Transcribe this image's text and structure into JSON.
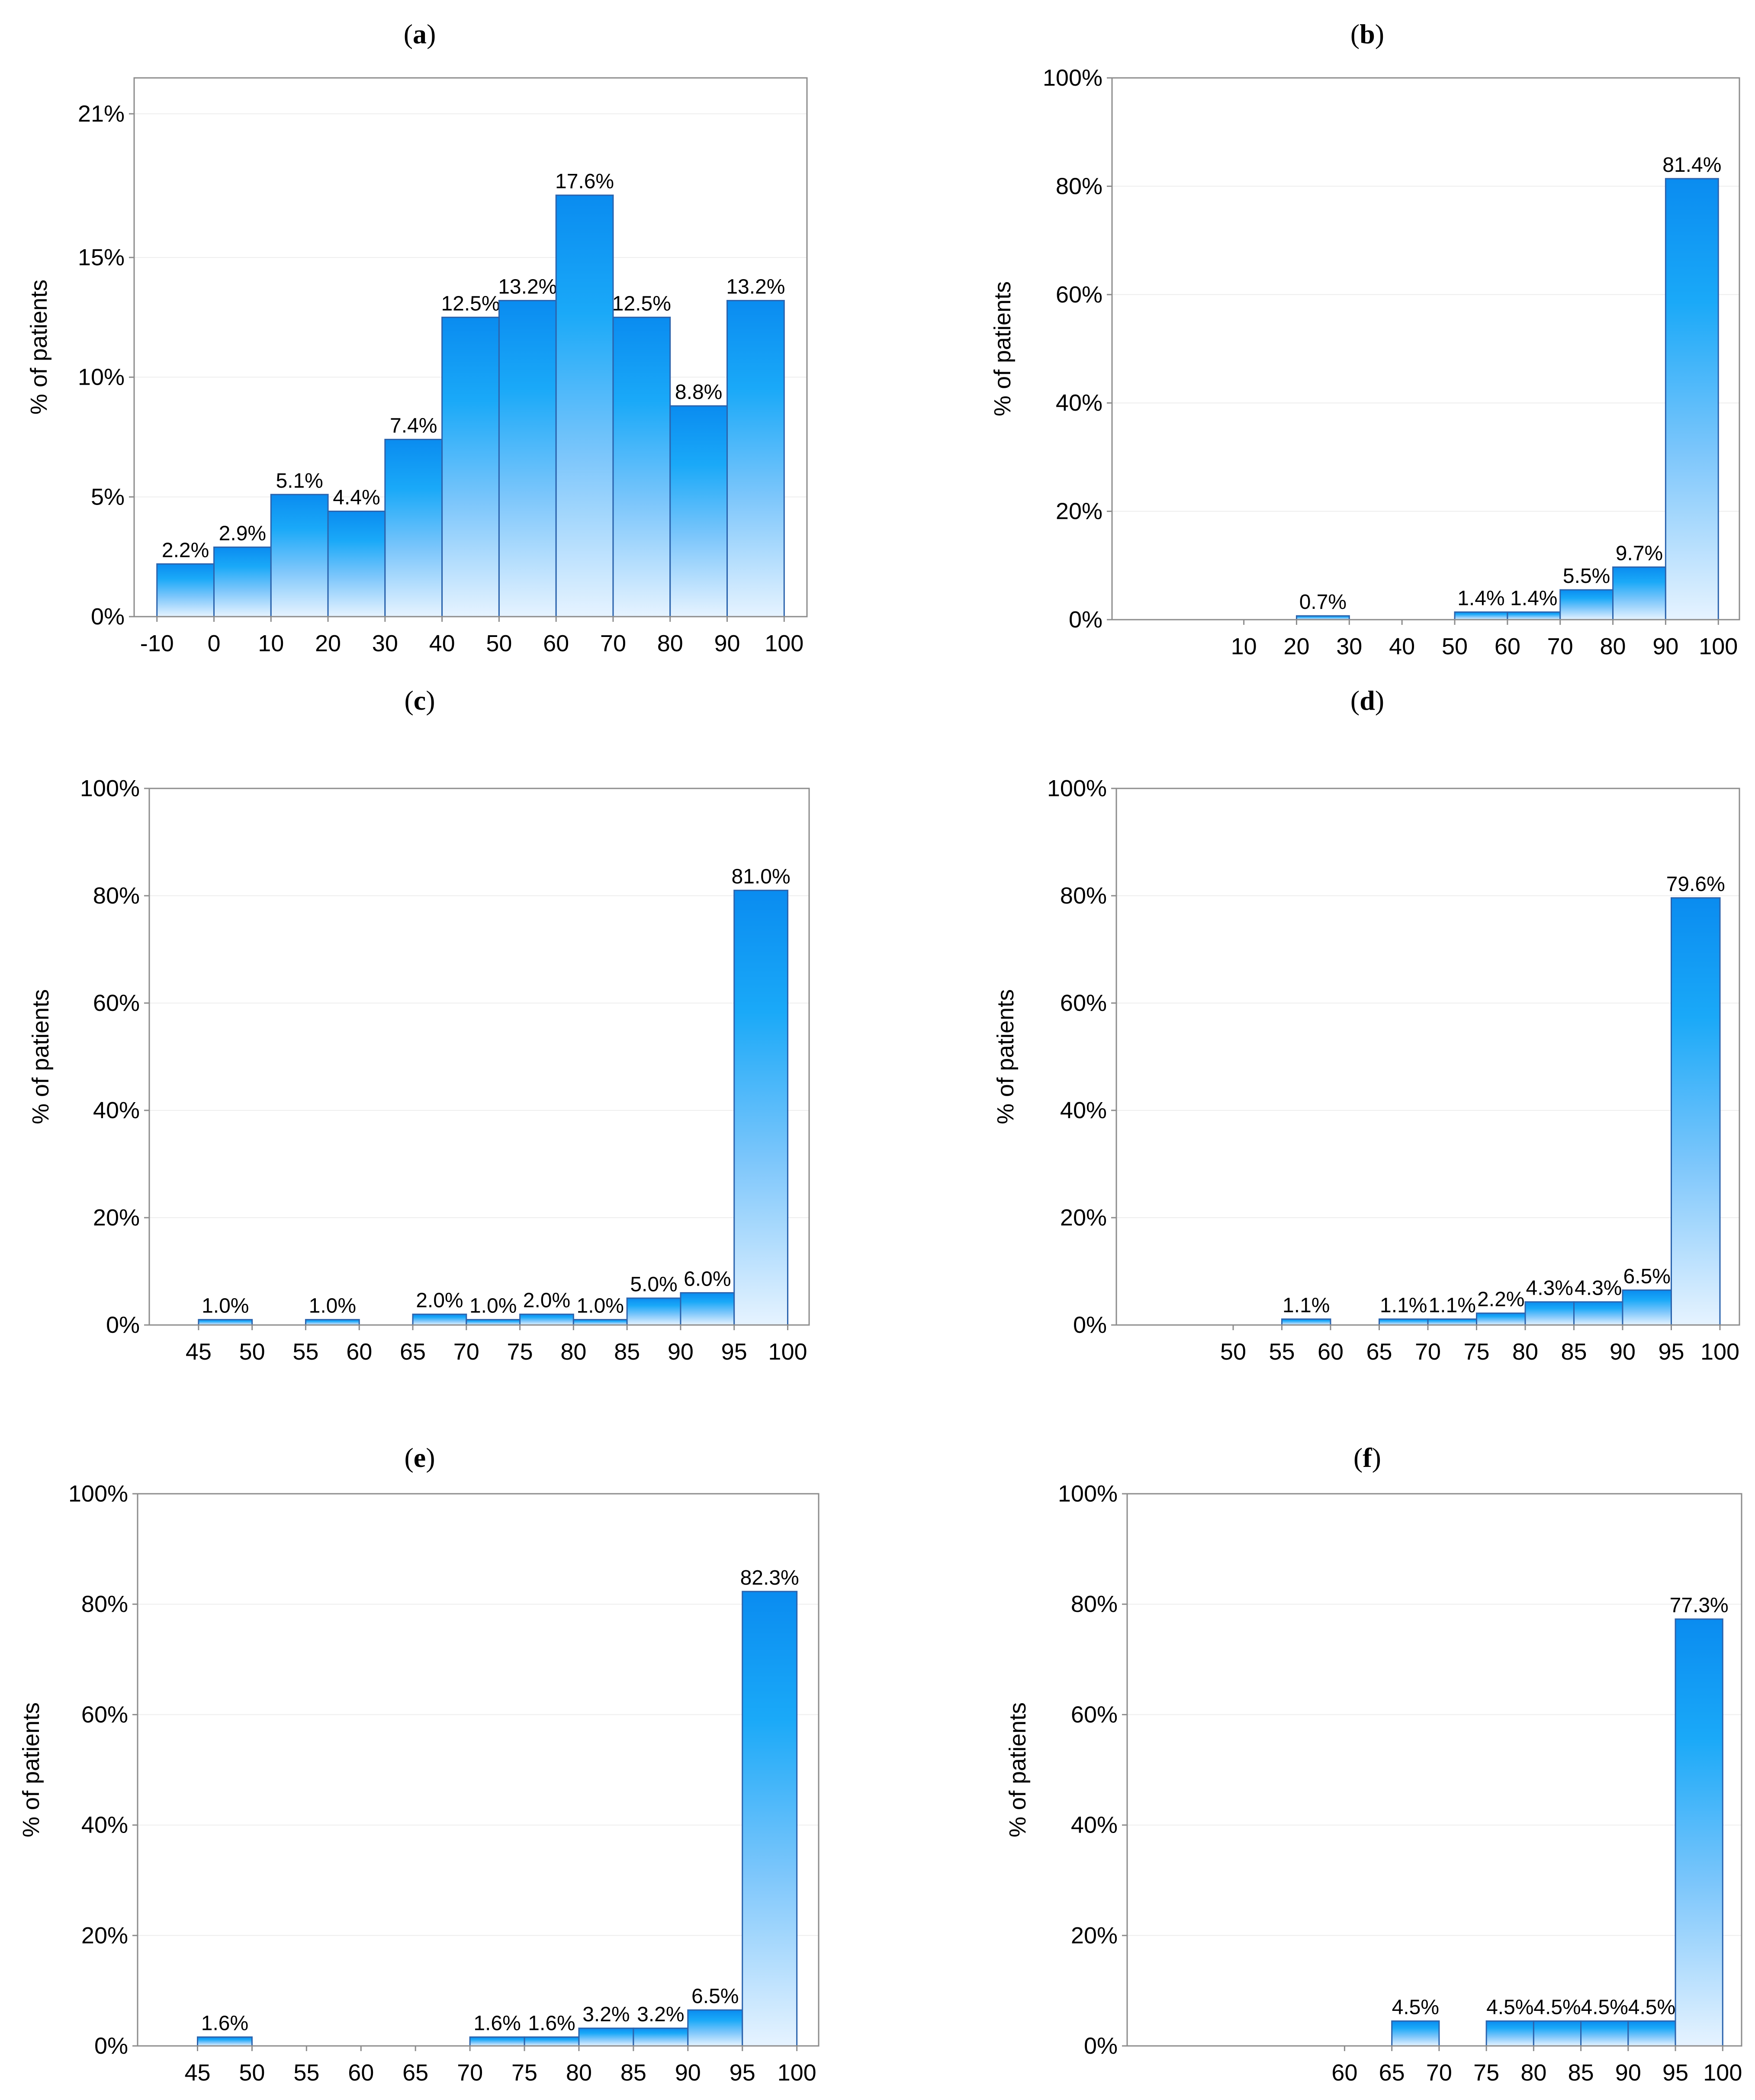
{
  "figure": {
    "colors": {
      "bar_top": "#0a8cf0",
      "bar_mid": "#1aa9f8",
      "bar_bottom": "#e6f3ff",
      "bar_edge": "#2b63ad",
      "frame": "#8c8c8c"
    }
  },
  "chart_data": [
    {
      "panel": "a",
      "title_prefix": "(",
      "title_letter": "a",
      "title_suffix": ")",
      "type": "bar",
      "ylabel": "% of patients",
      "ylim": [
        0,
        22.5
      ],
      "yticks": [
        0,
        5,
        10,
        15,
        21
      ],
      "ytick_labels": [
        "0%",
        "5%",
        "10%",
        "15%",
        "21%"
      ],
      "xlim": [
        -14,
        104
      ],
      "xticks": [
        -10,
        0,
        10,
        20,
        30,
        40,
        50,
        60,
        70,
        80,
        90,
        100
      ],
      "xtick_labels": [
        "-10",
        "0",
        "10",
        "20",
        "30",
        "40",
        "50",
        "60",
        "70",
        "80",
        "90",
        "100"
      ],
      "bars": [
        {
          "from": -10,
          "to": 0,
          "value": 2.2,
          "label": "2.2%"
        },
        {
          "from": 0,
          "to": 10,
          "value": 2.9,
          "label": "2.9%"
        },
        {
          "from": 10,
          "to": 20,
          "value": 5.1,
          "label": "5.1%"
        },
        {
          "from": 20,
          "to": 30,
          "value": 4.4,
          "label": "4.4%"
        },
        {
          "from": 30,
          "to": 40,
          "value": 7.4,
          "label": "7.4%"
        },
        {
          "from": 40,
          "to": 50,
          "value": 12.5,
          "label": "12.5%"
        },
        {
          "from": 50,
          "to": 60,
          "value": 13.2,
          "label": "13.2%"
        },
        {
          "from": 60,
          "to": 70,
          "value": 17.6,
          "label": "17.6%"
        },
        {
          "from": 70,
          "to": 80,
          "value": 12.5,
          "label": "12.5%"
        },
        {
          "from": 80,
          "to": 90,
          "value": 8.8,
          "label": "8.8%"
        },
        {
          "from": 90,
          "to": 100,
          "value": 13.2,
          "label": "13.2%"
        }
      ]
    },
    {
      "panel": "b",
      "title_prefix": "(",
      "title_letter": "b",
      "title_suffix": ")",
      "type": "bar",
      "ylabel": "% of patients",
      "ylim": [
        0,
        100
      ],
      "yticks": [
        0,
        20,
        40,
        60,
        80,
        100
      ],
      "ytick_labels": [
        "0%",
        "20%",
        "40%",
        "60%",
        "80%",
        "100%"
      ],
      "xlim": [
        -15,
        104
      ],
      "xticks": [
        10,
        20,
        30,
        40,
        50,
        60,
        70,
        80,
        90,
        100
      ],
      "xtick_labels": [
        "10",
        "20",
        "30",
        "40",
        "50",
        "60",
        "70",
        "80",
        "90",
        "100"
      ],
      "bars": [
        {
          "from": 20,
          "to": 30,
          "value": 0.7,
          "label": "0.7%"
        },
        {
          "from": 50,
          "to": 60,
          "value": 1.4,
          "label": "1.4%"
        },
        {
          "from": 60,
          "to": 70,
          "value": 1.4,
          "label": "1.4%"
        },
        {
          "from": 70,
          "to": 80,
          "value": 5.5,
          "label": "5.5%"
        },
        {
          "from": 80,
          "to": 90,
          "value": 9.7,
          "label": "9.7%"
        },
        {
          "from": 90,
          "to": 100,
          "value": 81.4,
          "label": "81.4%"
        }
      ]
    },
    {
      "panel": "c",
      "title_prefix": "(",
      "title_letter": "c",
      "title_suffix": ")",
      "type": "bar",
      "ylabel": "% of patients",
      "ylim": [
        0,
        100
      ],
      "yticks": [
        0,
        20,
        40,
        60,
        80,
        100
      ],
      "ytick_labels": [
        "0%",
        "20%",
        "40%",
        "60%",
        "80%",
        "100%"
      ],
      "xlim": [
        40.4,
        102
      ],
      "xticks": [
        45,
        50,
        55,
        60,
        65,
        70,
        75,
        80,
        85,
        90,
        95,
        100
      ],
      "xtick_labels": [
        "45",
        "50",
        "55",
        "60",
        "65",
        "70",
        "75",
        "80",
        "85",
        "90",
        "95",
        "100"
      ],
      "bars": [
        {
          "from": 45,
          "to": 50,
          "value": 1.0,
          "label": "1.0%"
        },
        {
          "from": 55,
          "to": 60,
          "value": 1.0,
          "label": "1.0%"
        },
        {
          "from": 65,
          "to": 70,
          "value": 2.0,
          "label": "2.0%"
        },
        {
          "from": 70,
          "to": 75,
          "value": 1.0,
          "label": "1.0%"
        },
        {
          "from": 75,
          "to": 80,
          "value": 2.0,
          "label": "2.0%"
        },
        {
          "from": 80,
          "to": 85,
          "value": 1.0,
          "label": "1.0%"
        },
        {
          "from": 85,
          "to": 90,
          "value": 5.0,
          "label": "5.0%"
        },
        {
          "from": 90,
          "to": 95,
          "value": 6.0,
          "label": "6.0%"
        },
        {
          "from": 95,
          "to": 100,
          "value": 81.0,
          "label": "81.0%"
        }
      ]
    },
    {
      "panel": "d",
      "title_prefix": "(",
      "title_letter": "d",
      "title_suffix": ")",
      "type": "bar",
      "ylabel": "% of patients",
      "ylim": [
        0,
        100
      ],
      "yticks": [
        0,
        20,
        40,
        60,
        80,
        100
      ],
      "ytick_labels": [
        "0%",
        "20%",
        "40%",
        "60%",
        "80%",
        "100%"
      ],
      "xlim": [
        38,
        102
      ],
      "xticks": [
        50,
        55,
        60,
        65,
        70,
        75,
        80,
        85,
        90,
        95,
        100
      ],
      "xtick_labels": [
        "50",
        "55",
        "60",
        "65",
        "70",
        "75",
        "80",
        "85",
        "90",
        "95",
        "100"
      ],
      "bars": [
        {
          "from": 55,
          "to": 60,
          "value": 1.1,
          "label": "1.1%"
        },
        {
          "from": 65,
          "to": 70,
          "value": 1.1,
          "label": "1.1%"
        },
        {
          "from": 70,
          "to": 75,
          "value": 1.1,
          "label": "1.1%"
        },
        {
          "from": 75,
          "to": 80,
          "value": 2.2,
          "label": "2.2%"
        },
        {
          "from": 80,
          "to": 85,
          "value": 4.3,
          "label": "4.3%"
        },
        {
          "from": 85,
          "to": 90,
          "value": 4.3,
          "label": "4.3%"
        },
        {
          "from": 90,
          "to": 95,
          "value": 6.5,
          "label": "6.5%"
        },
        {
          "from": 95,
          "to": 100,
          "value": 79.6,
          "label": "79.6%"
        }
      ]
    },
    {
      "panel": "e",
      "title_prefix": "(",
      "title_letter": "e",
      "title_suffix": ")",
      "type": "bar",
      "ylabel": "% of patients",
      "ylim": [
        0,
        100
      ],
      "yticks": [
        0,
        20,
        40,
        60,
        80,
        100
      ],
      "ytick_labels": [
        "0%",
        "20%",
        "40%",
        "60%",
        "80%",
        "100%"
      ],
      "xlim": [
        39.5,
        102
      ],
      "xticks": [
        45,
        50,
        55,
        60,
        65,
        70,
        75,
        80,
        85,
        90,
        95,
        100
      ],
      "xtick_labels": [
        "45",
        "50",
        "55",
        "60",
        "65",
        "70",
        "75",
        "80",
        "85",
        "90",
        "95",
        "100"
      ],
      "bars": [
        {
          "from": 45,
          "to": 50,
          "value": 1.6,
          "label": "1.6%"
        },
        {
          "from": 70,
          "to": 75,
          "value": 1.6,
          "label": "1.6%"
        },
        {
          "from": 75,
          "to": 80,
          "value": 1.6,
          "label": "1.6%"
        },
        {
          "from": 80,
          "to": 85,
          "value": 3.2,
          "label": "3.2%"
        },
        {
          "from": 85,
          "to": 90,
          "value": 3.2,
          "label": "3.2%"
        },
        {
          "from": 90,
          "to": 95,
          "value": 6.5,
          "label": "6.5%"
        },
        {
          "from": 95,
          "to": 100,
          "value": 82.3,
          "label": "82.3%"
        }
      ]
    },
    {
      "panel": "f",
      "title_prefix": "(",
      "title_letter": "f",
      "title_suffix": ")",
      "type": "bar",
      "ylabel": "% of patients",
      "ylim": [
        0,
        100
      ],
      "yticks": [
        0,
        20,
        40,
        60,
        80,
        100
      ],
      "ytick_labels": [
        "0%",
        "20%",
        "40%",
        "60%",
        "80%",
        "100%"
      ],
      "xlim": [
        37,
        102
      ],
      "xticks": [
        60,
        65,
        70,
        75,
        80,
        85,
        90,
        95,
        100
      ],
      "xtick_labels": [
        "60",
        "65",
        "70",
        "75",
        "80",
        "85",
        "90",
        "95",
        "100"
      ],
      "bars": [
        {
          "from": 65,
          "to": 70,
          "value": 4.5,
          "label": "4.5%"
        },
        {
          "from": 75,
          "to": 80,
          "value": 4.5,
          "label": "4.5%"
        },
        {
          "from": 80,
          "to": 85,
          "value": 4.5,
          "label": "4.5%"
        },
        {
          "from": 85,
          "to": 90,
          "value": 4.5,
          "label": "4.5%"
        },
        {
          "from": 90,
          "to": 95,
          "value": 4.5,
          "label": "4.5%"
        },
        {
          "from": 95,
          "to": 100,
          "value": 77.3,
          "label": "77.3%"
        }
      ]
    }
  ]
}
